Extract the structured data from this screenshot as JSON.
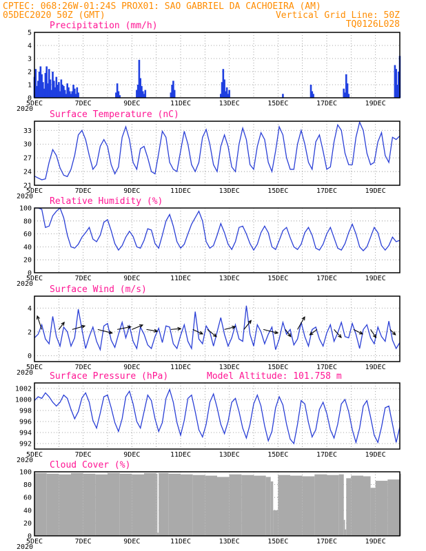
{
  "header": {
    "line1_left": "CPTEC:  068:26W-01:24S  PROX01: SAO GABRIEL DA CACHOEIRA (AM)",
    "line2_left": "05DEC2020 50Z (GMT)",
    "line2_right": "Vertical Grid Line: 50Z",
    "line3_right": "TQ0126L028"
  },
  "x_tick_labels": [
    "5DEC",
    "7DEC",
    "9DEC",
    "11DEC",
    "13DEC",
    "15DEC",
    "17DEC",
    "19DEC"
  ],
  "x_small_label": "2020",
  "colors": {
    "series": "#2a3fd6",
    "bars": "#1f3fe0",
    "cloud": "#aaaaaa",
    "title": "#ff1493",
    "header": "#ff8c00",
    "arrow": "#000000"
  },
  "chart_data": [
    {
      "type": "bar",
      "title": "Precipitation (mm/h)",
      "ylim": [
        0,
        5
      ],
      "yticks": [
        0,
        1,
        2,
        3,
        4,
        5
      ],
      "x_days": [
        0,
        0.05,
        0.1,
        0.15,
        0.2,
        0.25,
        0.3,
        0.35,
        0.4,
        0.45,
        0.5,
        0.55,
        0.6,
        0.65,
        0.7,
        0.75,
        0.8,
        0.85,
        0.9,
        0.95,
        1.0,
        1.05,
        1.1,
        1.15,
        1.2,
        1.25,
        1.3,
        1.35,
        1.4,
        1.45,
        1.5,
        1.55,
        1.6,
        1.65,
        1.7,
        1.75,
        1.8,
        3.35,
        3.4,
        3.45,
        3.5,
        4.2,
        4.25,
        4.3,
        4.35,
        4.4,
        4.45,
        4.5,
        4.55,
        5.6,
        5.65,
        5.7,
        5.75,
        7.65,
        7.7,
        7.75,
        7.8,
        7.85,
        7.9,
        7.95,
        8.0,
        10.2,
        11.35,
        11.4,
        11.45,
        12.7,
        12.75,
        12.8,
        12.85,
        12.9,
        14.8,
        14.85,
        14.9,
        14.95,
        15.0
      ],
      "values": [
        1.6,
        2.2,
        0.9,
        1.3,
        2.0,
        2.4,
        1.8,
        1.2,
        0.7,
        1.9,
        2.4,
        1.1,
        2.2,
        1.4,
        0.6,
        2.0,
        1.3,
        0.8,
        1.6,
        1.0,
        1.2,
        0.5,
        1.4,
        1.0,
        0.9,
        0.6,
        0.3,
        1.1,
        0.8,
        0.5,
        0.3,
        0.5,
        1.0,
        0.7,
        0.3,
        0.8,
        0.4,
        0.4,
        1.1,
        0.5,
        0.2,
        0.6,
        1.0,
        2.9,
        1.5,
        0.9,
        0.5,
        0.3,
        0.6,
        0.4,
        1.0,
        1.3,
        0.6,
        0.3,
        1.2,
        2.2,
        1.4,
        0.5,
        0.8,
        0.3,
        0.6,
        0.3,
        1.0,
        0.5,
        0.3,
        0.7,
        0.4,
        1.8,
        1.1,
        0.3,
        2.5,
        2.2,
        1.0,
        2.0,
        3.2
      ]
    },
    {
      "type": "line",
      "title": "Surface Temperature (nC)",
      "ylim": [
        21,
        35
      ],
      "yticks": [
        21,
        24,
        27,
        30,
        33
      ],
      "x_days": [
        0,
        0.15,
        0.3,
        0.45,
        0.6,
        0.75,
        0.9,
        1.05,
        1.2,
        1.35,
        1.5,
        1.65,
        1.8,
        1.95,
        2.1,
        2.25,
        2.4,
        2.55,
        2.7,
        2.85,
        3.0,
        3.15,
        3.3,
        3.45,
        3.6,
        3.75,
        3.9,
        4.05,
        4.2,
        4.35,
        4.5,
        4.65,
        4.8,
        4.95,
        5.1,
        5.25,
        5.4,
        5.55,
        5.7,
        5.85,
        6.0,
        6.15,
        6.3,
        6.45,
        6.6,
        6.75,
        6.9,
        7.05,
        7.2,
        7.35,
        7.5,
        7.65,
        7.8,
        7.95,
        8.1,
        8.25,
        8.4,
        8.55,
        8.7,
        8.85,
        9.0,
        9.15,
        9.3,
        9.45,
        9.6,
        9.75,
        9.9,
        10.05,
        10.2,
        10.35,
        10.5,
        10.65,
        10.8,
        10.95,
        11.1,
        11.25,
        11.4,
        11.55,
        11.7,
        11.85,
        12.0,
        12.15,
        12.3,
        12.45,
        12.6,
        12.75,
        12.9,
        13.05,
        13.2,
        13.35,
        13.5,
        13.65,
        13.8,
        13.95,
        14.1,
        14.25,
        14.4,
        14.55,
        14.7,
        14.85,
        15.0
      ],
      "values": [
        23,
        22.6,
        22.2,
        22.4,
        26,
        28.8,
        27.5,
        24.8,
        23.2,
        22.9,
        24.5,
        27.5,
        32,
        33,
        31,
        27.5,
        24.5,
        25.5,
        29.5,
        31,
        29.5,
        25.5,
        23.5,
        25,
        31.5,
        33.8,
        31,
        26,
        24.5,
        29,
        29.5,
        27,
        24,
        23.5,
        28,
        32.8,
        31.5,
        26,
        24.5,
        24,
        28.5,
        32.8,
        30,
        25.5,
        24,
        26,
        31.5,
        33.2,
        30,
        25.5,
        24,
        29.5,
        32,
        29.5,
        25,
        24,
        30,
        33.5,
        31,
        25.5,
        24.5,
        29.5,
        32.5,
        31,
        26,
        24,
        28.5,
        33.8,
        32,
        27,
        24.5,
        24.5,
        30,
        33,
        30,
        26,
        24.5,
        30.5,
        32,
        28.5,
        24.5,
        25,
        30.5,
        34.2,
        33,
        28,
        25.5,
        25.5,
        31.5,
        34.8,
        33,
        28,
        25.5,
        26,
        30.5,
        32.5,
        27.5,
        26,
        31.5,
        31,
        31.8
      ]
    },
    {
      "type": "line",
      "title": "Relative Humidity (%)",
      "ylim": [
        0,
        100
      ],
      "yticks": [
        0,
        20,
        40,
        60,
        80,
        100
      ],
      "x_days": [
        0,
        0.15,
        0.3,
        0.45,
        0.6,
        0.75,
        0.9,
        1.05,
        1.2,
        1.35,
        1.5,
        1.65,
        1.8,
        1.95,
        2.1,
        2.25,
        2.4,
        2.55,
        2.7,
        2.85,
        3.0,
        3.15,
        3.3,
        3.45,
        3.6,
        3.75,
        3.9,
        4.05,
        4.2,
        4.35,
        4.5,
        4.65,
        4.8,
        4.95,
        5.1,
        5.25,
        5.4,
        5.55,
        5.7,
        5.85,
        6.0,
        6.15,
        6.3,
        6.45,
        6.6,
        6.75,
        6.9,
        7.05,
        7.2,
        7.35,
        7.5,
        7.65,
        7.8,
        7.95,
        8.1,
        8.25,
        8.4,
        8.55,
        8.7,
        8.85,
        9.0,
        9.15,
        9.3,
        9.45,
        9.6,
        9.75,
        9.9,
        10.05,
        10.2,
        10.35,
        10.5,
        10.65,
        10.8,
        10.95,
        11.1,
        11.25,
        11.4,
        11.55,
        11.7,
        11.85,
        12.0,
        12.15,
        12.3,
        12.45,
        12.6,
        12.75,
        12.9,
        13.05,
        13.2,
        13.35,
        13.5,
        13.65,
        13.8,
        13.95,
        14.1,
        14.25,
        14.4,
        14.55,
        14.7,
        14.85,
        15.0
      ],
      "values": [
        100,
        100,
        98,
        70,
        72,
        88,
        95,
        100,
        85,
        58,
        40,
        38,
        44,
        55,
        62,
        70,
        52,
        48,
        58,
        78,
        82,
        65,
        45,
        35,
        42,
        55,
        64,
        56,
        40,
        38,
        50,
        68,
        66,
        45,
        38,
        58,
        80,
        90,
        72,
        48,
        38,
        44,
        60,
        75,
        85,
        95,
        80,
        48,
        38,
        42,
        58,
        76,
        62,
        44,
        36,
        48,
        70,
        72,
        60,
        45,
        35,
        44,
        62,
        72,
        62,
        40,
        36,
        50,
        65,
        70,
        54,
        40,
        36,
        44,
        62,
        70,
        58,
        38,
        35,
        44,
        60,
        70,
        54,
        38,
        35,
        45,
        62,
        75,
        60,
        40,
        34,
        40,
        55,
        70,
        62,
        42,
        35,
        42,
        55,
        48,
        50
      ]
    },
    {
      "type": "line",
      "title": "Surface Wind (m/s)",
      "ylim": [
        -0.5,
        5
      ],
      "yticks": [
        0,
        2,
        4
      ],
      "x_days": [
        0,
        0.15,
        0.3,
        0.45,
        0.6,
        0.75,
        0.9,
        1.05,
        1.2,
        1.35,
        1.5,
        1.65,
        1.8,
        1.95,
        2.1,
        2.25,
        2.4,
        2.55,
        2.7,
        2.85,
        3.0,
        3.15,
        3.3,
        3.45,
        3.6,
        3.75,
        3.9,
        4.05,
        4.2,
        4.35,
        4.5,
        4.65,
        4.8,
        4.95,
        5.1,
        5.25,
        5.4,
        5.55,
        5.7,
        5.85,
        6.0,
        6.15,
        6.3,
        6.45,
        6.6,
        6.75,
        6.9,
        7.05,
        7.2,
        7.35,
        7.5,
        7.65,
        7.8,
        7.95,
        8.1,
        8.25,
        8.4,
        8.55,
        8.7,
        8.85,
        9.0,
        9.15,
        9.3,
        9.45,
        9.6,
        9.75,
        9.9,
        10.05,
        10.2,
        10.35,
        10.5,
        10.65,
        10.8,
        10.95,
        11.1,
        11.25,
        11.4,
        11.55,
        11.7,
        11.85,
        12.0,
        12.15,
        12.3,
        12.45,
        12.6,
        12.75,
        12.9,
        13.05,
        13.2,
        13.35,
        13.5,
        13.65,
        13.8,
        13.95,
        14.1,
        14.25,
        14.4,
        14.55,
        14.7,
        14.85,
        15.0
      ],
      "values": [
        1.5,
        1.8,
        2.6,
        1.4,
        1.0,
        3.3,
        1.6,
        0.8,
        2.4,
        2.0,
        0.8,
        1.5,
        3.9,
        2.2,
        0.6,
        1.6,
        2.4,
        1.2,
        0.5,
        2.5,
        2.7,
        1.3,
        0.7,
        1.8,
        2.8,
        1.5,
        2.5,
        1.2,
        0.6,
        2.4,
        1.8,
        0.9,
        0.6,
        1.6,
        2.3,
        1.1,
        2.5,
        2.4,
        1.0,
        0.6,
        1.7,
        2.6,
        1.2,
        0.6,
        3.7,
        1.4,
        1.0,
        2.5,
        2.0,
        0.8,
        2.0,
        3.2,
        1.8,
        0.8,
        1.5,
        2.6,
        1.4,
        1.2,
        4.2,
        1.8,
        0.8,
        2.6,
        2.0,
        1.0,
        1.8,
        2.4,
        0.5,
        1.4,
        2.8,
        1.8,
        2.2,
        0.9,
        1.4,
        2.8,
        1.6,
        0.8,
        2.2,
        2.4,
        1.4,
        0.8,
        1.9,
        2.6,
        1.2,
        1.9,
        2.8,
        1.6,
        1.5,
        2.7,
        1.8,
        0.6,
        2.2,
        2.6,
        1.5,
        1.0,
        2.4,
        1.6,
        1.2,
        2.9,
        1.3,
        0.6,
        1.1
      ],
      "arrows": [
        {
          "day": 0.3,
          "u": -0.5,
          "v": 1.5
        },
        {
          "day": 1.0,
          "u": 0.6,
          "v": 0.8
        },
        {
          "day": 1.55,
          "u": 1.4,
          "v": 0.4
        },
        {
          "day": 2.6,
          "u": 1.6,
          "v": -0.4
        },
        {
          "day": 3.4,
          "u": 1.5,
          "v": 0.3
        },
        {
          "day": 4.0,
          "u": 1.2,
          "v": 0.5
        },
        {
          "day": 4.6,
          "u": 1.2,
          "v": -0.2
        },
        {
          "day": 5.6,
          "u": 1.1,
          "v": 0.1
        },
        {
          "day": 6.5,
          "u": 1.1,
          "v": -0.5
        },
        {
          "day": 7.1,
          "u": 1.0,
          "v": -0.8
        },
        {
          "day": 7.8,
          "u": 1.2,
          "v": 0.3
        },
        {
          "day": 8.6,
          "u": 0.8,
          "v": 1.0
        },
        {
          "day": 9.4,
          "u": 1.6,
          "v": -0.4
        },
        {
          "day": 10.3,
          "u": 0.6,
          "v": -0.8
        },
        {
          "day": 10.8,
          "u": 0.8,
          "v": 1.4
        },
        {
          "day": 11.6,
          "u": -0.8,
          "v": -0.6
        },
        {
          "day": 12.3,
          "u": 0.8,
          "v": -0.9
        },
        {
          "day": 13.1,
          "u": 1.0,
          "v": -0.5
        },
        {
          "day": 13.8,
          "u": 0.6,
          "v": -0.9
        },
        {
          "day": 14.6,
          "u": 0.6,
          "v": -0.6
        }
      ]
    },
    {
      "type": "line",
      "title": "Surface Pressure (hPa)",
      "annotation": "Model Altitude: 101.758  m",
      "ylim": [
        991,
        1003
      ],
      "yticks": [
        992,
        994,
        996,
        998,
        1000,
        1002
      ],
      "x_days": [
        0,
        0.15,
        0.3,
        0.45,
        0.6,
        0.75,
        0.9,
        1.05,
        1.2,
        1.35,
        1.5,
        1.65,
        1.8,
        1.95,
        2.1,
        2.25,
        2.4,
        2.55,
        2.7,
        2.85,
        3.0,
        3.15,
        3.3,
        3.45,
        3.6,
        3.75,
        3.9,
        4.05,
        4.2,
        4.35,
        4.5,
        4.65,
        4.8,
        4.95,
        5.1,
        5.25,
        5.4,
        5.55,
        5.7,
        5.85,
        6.0,
        6.15,
        6.3,
        6.45,
        6.6,
        6.75,
        6.9,
        7.05,
        7.2,
        7.35,
        7.5,
        7.65,
        7.8,
        7.95,
        8.1,
        8.25,
        8.4,
        8.55,
        8.7,
        8.85,
        9.0,
        9.15,
        9.3,
        9.45,
        9.6,
        9.75,
        9.9,
        10.05,
        10.2,
        10.35,
        10.5,
        10.65,
        10.8,
        10.95,
        11.1,
        11.25,
        11.4,
        11.55,
        11.7,
        11.85,
        12.0,
        12.15,
        12.3,
        12.45,
        12.6,
        12.75,
        12.9,
        13.05,
        13.2,
        13.35,
        13.5,
        13.65,
        13.8,
        13.95,
        14.1,
        14.25,
        14.4,
        14.55,
        14.7,
        14.85,
        15.0
      ],
      "values": [
        999.8,
        1000.5,
        1000.2,
        1001.2,
        1000.5,
        999.5,
        998.8,
        999.5,
        1000.8,
        1000.2,
        998.2,
        996.5,
        997.8,
        1000.3,
        1001.2,
        999.5,
        996.2,
        994.8,
        997.5,
        1000.5,
        1000.8,
        998.5,
        995.8,
        994.2,
        996.5,
        1000.5,
        1001.5,
        999.2,
        996.0,
        994.8,
        997.8,
        1000.8,
        999.8,
        996.5,
        994.2,
        995.8,
        1000.2,
        1001.8,
        999.5,
        995.8,
        993.5,
        996.2,
        1000.2,
        1000.8,
        997.8,
        994.5,
        993.2,
        995.5,
        999.5,
        1001.0,
        998.5,
        995.5,
        993.8,
        996.0,
        999.5,
        1000.2,
        997.8,
        994.8,
        993.0,
        995.5,
        999.2,
        1000.8,
        998.8,
        995.2,
        992.5,
        994.2,
        998.5,
        1000.5,
        999.0,
        995.5,
        992.8,
        992.0,
        995.5,
        999.8,
        999.2,
        995.8,
        993.2,
        994.5,
        998.2,
        999.5,
        997.5,
        994.5,
        993.0,
        995.5,
        999.2,
        1000.0,
        997.8,
        994.5,
        992.2,
        994.8,
        998.8,
        999.8,
        996.8,
        993.5,
        992.2,
        995.0,
        998.5,
        998.8,
        995.5,
        992.2,
        995.0
      ]
    },
    {
      "type": "area",
      "title": "Cloud Cover (%)",
      "ylim": [
        0,
        100
      ],
      "yticks": [
        0,
        20,
        40,
        60,
        80,
        100
      ],
      "x_days": [
        0,
        0.5,
        1.0,
        1.5,
        2.0,
        2.5,
        3.0,
        3.5,
        4.0,
        4.5,
        5.0,
        5.05,
        5.1,
        5.5,
        6.0,
        6.5,
        7.0,
        7.5,
        8.0,
        8.5,
        9.0,
        9.5,
        9.7,
        9.8,
        10.0,
        10.5,
        11.0,
        11.5,
        12.0,
        12.5,
        12.7,
        12.75,
        12.8,
        13.0,
        13.5,
        13.8,
        14.0,
        14.5,
        15.0
      ],
      "values": [
        98,
        97,
        96,
        98,
        97,
        96,
        98,
        97,
        96,
        98,
        97,
        5,
        98,
        97,
        96,
        95,
        94,
        92,
        96,
        95,
        94,
        92,
        85,
        40,
        95,
        94,
        93,
        96,
        95,
        96,
        25,
        10,
        90,
        94,
        93,
        75,
        86,
        88,
        97
      ]
    }
  ]
}
